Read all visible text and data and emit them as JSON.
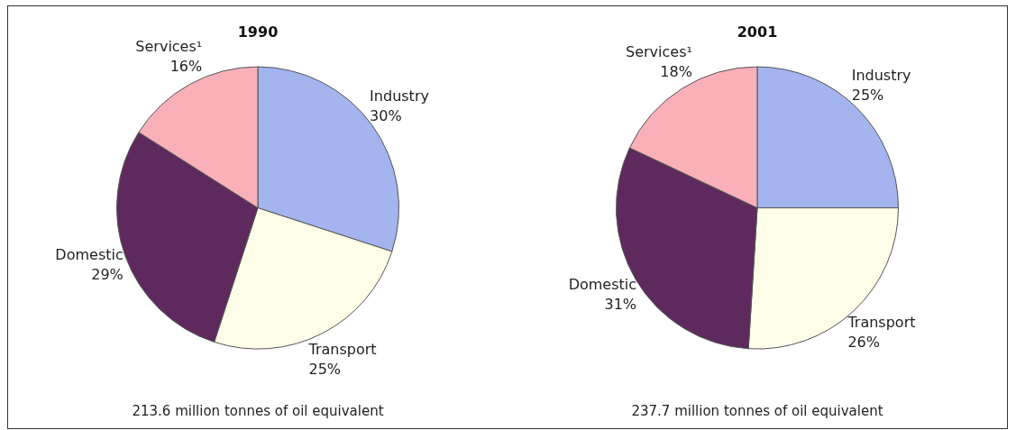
{
  "chart_data": [
    {
      "type": "pie",
      "title": "1990",
      "categories": [
        "Industry",
        "Transport",
        "Domestic",
        "Services¹"
      ],
      "values": [
        30,
        25,
        29,
        16
      ],
      "value_labels": [
        "30%",
        "25%",
        "29%",
        "16%"
      ],
      "colors": [
        "#a3b4ee",
        "#fdfde8",
        "#5e2a5e",
        "#f9b0b8"
      ],
      "legend": false,
      "annotations": [
        "213.6 million tonnes of oil equivalent"
      ]
    },
    {
      "type": "pie",
      "title": "2001",
      "categories": [
        "Industry",
        "Transport",
        "Domestic",
        "Services¹"
      ],
      "values": [
        25,
        26,
        31,
        18
      ],
      "value_labels": [
        "25%",
        "26%",
        "31%",
        "18%"
      ],
      "colors": [
        "#a3b4ee",
        "#fdfde8",
        "#5e2a5e",
        "#f9b0b8"
      ],
      "legend": false,
      "annotations": [
        "237.7 million tonnes of oil equivalent"
      ]
    }
  ]
}
